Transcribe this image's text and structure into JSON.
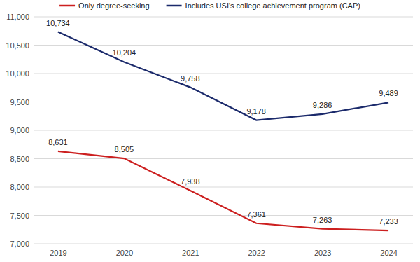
{
  "chart_data": {
    "type": "line",
    "categories": [
      "2019",
      "2020",
      "2021",
      "2022",
      "2023",
      "2024"
    ],
    "series": [
      {
        "name": "Only degree-seeking",
        "color": "#cc1f1f",
        "values": [
          8631,
          8505,
          7938,
          7361,
          7263,
          7233
        ],
        "value_labels": [
          "8,631",
          "8,505",
          "7,938",
          "7,361",
          "7,263",
          "7,233"
        ]
      },
      {
        "name": "Includes USI's college achievement program (CAP)",
        "color": "#1b2a6b",
        "values": [
          10734,
          10204,
          9758,
          9178,
          9286,
          9489
        ],
        "value_labels": [
          "10,734",
          "10,204",
          "9,758",
          "9,178",
          "9,286",
          "9,489"
        ]
      }
    ],
    "ylim": [
      7000,
      11000
    ],
    "yticks": [
      {
        "value": 7000,
        "label": "7,000"
      },
      {
        "value": 7500,
        "label": "7,500"
      },
      {
        "value": 8000,
        "label": "8,000"
      },
      {
        "value": 8500,
        "label": "8,500"
      },
      {
        "value": 9000,
        "label": "9,000"
      },
      {
        "value": 9500,
        "label": "9,500"
      },
      {
        "value": 10000,
        "label": "10,000"
      },
      {
        "value": 10500,
        "label": "10,500"
      },
      {
        "value": 11000,
        "label": "11,000"
      }
    ],
    "grid": true,
    "legend": "top",
    "data_labels": true
  }
}
